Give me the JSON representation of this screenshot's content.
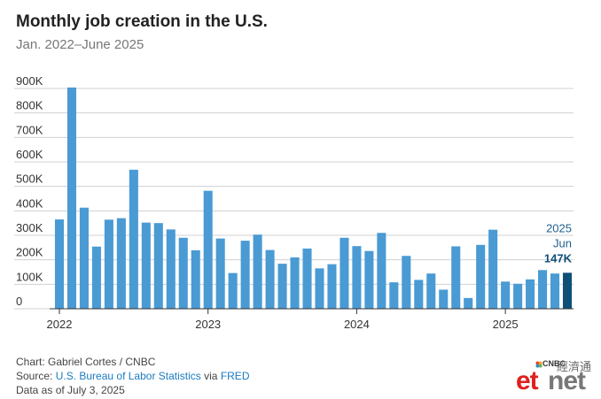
{
  "header": {
    "title": "Monthly job creation in the U.S.",
    "subtitle": "Jan. 2022–June 2025"
  },
  "annotation": {
    "year": "2025",
    "month": "Jun",
    "value": "147K"
  },
  "footer": {
    "credit": "Chart: Gabriel Cortes / CNBC",
    "source_prefix": "Source: ",
    "source_link1": "U.S. Bureau of Labor Statistics",
    "source_via": " via ",
    "source_link2": "FRED",
    "data_as_of": "Data as of July 3, 2025"
  },
  "logo": {
    "brand_small": "CNBC",
    "chinese": "經濟通",
    "et": "et",
    "net": "net"
  },
  "colors": {
    "bar": "#4a9ad4",
    "bar_highlight": "#0e4f78",
    "grid": "#d0d0d0",
    "axis_text": "#333333",
    "annotation_text": "#1f5f8f"
  },
  "chart_data": {
    "type": "bar",
    "title": "Monthly job creation in the U.S.",
    "subtitle": "Jan. 2022–June 2025",
    "xlabel": "",
    "ylabel": "",
    "ylim": [
      0,
      900000
    ],
    "yticks": [
      0,
      100000,
      200000,
      300000,
      400000,
      500000,
      600000,
      700000,
      800000,
      900000
    ],
    "ytick_labels": [
      "0",
      "100K",
      "200K",
      "300K",
      "400K",
      "500K",
      "600K",
      "700K",
      "800K",
      "900K"
    ],
    "xtick_labels": [
      "2022",
      "2023",
      "2024",
      "2025"
    ],
    "grid": true,
    "categories": [
      "2022-01",
      "2022-02",
      "2022-03",
      "2022-04",
      "2022-05",
      "2022-06",
      "2022-07",
      "2022-08",
      "2022-09",
      "2022-10",
      "2022-11",
      "2022-12",
      "2023-01",
      "2023-02",
      "2023-03",
      "2023-04",
      "2023-05",
      "2023-06",
      "2023-07",
      "2023-08",
      "2023-09",
      "2023-10",
      "2023-11",
      "2023-12",
      "2024-01",
      "2024-02",
      "2024-03",
      "2024-04",
      "2024-05",
      "2024-06",
      "2024-07",
      "2024-08",
      "2024-09",
      "2024-10",
      "2024-11",
      "2024-12",
      "2025-01",
      "2025-02",
      "2025-03",
      "2025-04",
      "2025-05",
      "2025-06"
    ],
    "values": [
      365000,
      904000,
      413000,
      254000,
      364000,
      370000,
      568000,
      352000,
      350000,
      324000,
      290000,
      239000,
      482000,
      287000,
      146000,
      278000,
      303000,
      240000,
      184000,
      210000,
      246000,
      165000,
      182000,
      290000,
      256000,
      236000,
      310000,
      108000,
      216000,
      118000,
      144000,
      78000,
      255000,
      44000,
      261000,
      323000,
      111000,
      102000,
      120000,
      158000,
      144000,
      147000
    ],
    "highlight_index": 41
  }
}
